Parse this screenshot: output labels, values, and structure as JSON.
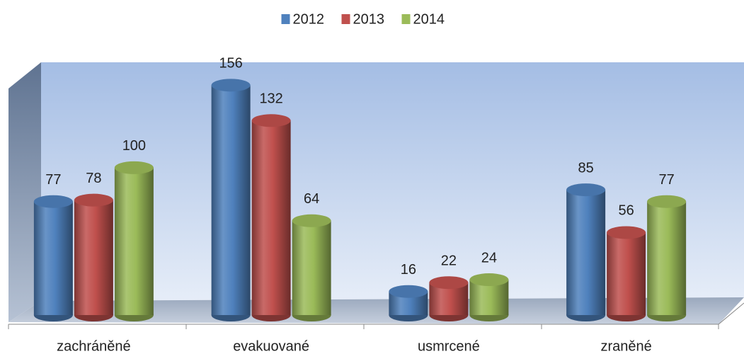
{
  "chart_data": {
    "type": "bar3d",
    "categories": [
      "zachráněné",
      "evakuované",
      "usmrcené",
      "zraněné"
    ],
    "series": [
      {
        "name": "2012",
        "color": "#4f81bd",
        "values": [
          77,
          156,
          16,
          85
        ]
      },
      {
        "name": "2013",
        "color": "#c0504d",
        "values": [
          78,
          132,
          22,
          56
        ]
      },
      {
        "name": "2014",
        "color": "#9bbb59",
        "values": [
          100,
          64,
          24,
          77
        ]
      }
    ],
    "ylim": [
      0,
      160
    ],
    "legend": "top"
  }
}
